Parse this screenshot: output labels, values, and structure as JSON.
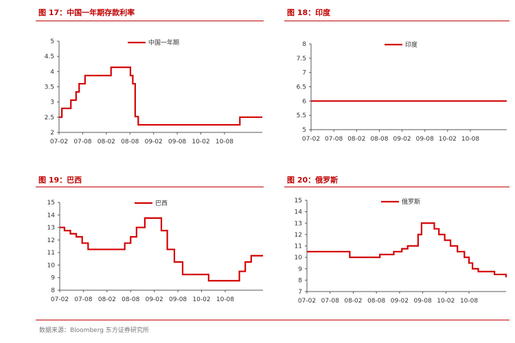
{
  "panels": [
    {
      "title": "图 17：中国一年期存款利率"
    },
    {
      "title": "图 18：印度"
    },
    {
      "title": "图 19：巴西"
    },
    {
      "title": "图 20：俄罗斯"
    }
  ],
  "footer": "数据来源：Bloomberg  东方证券研究所",
  "colors": {
    "series": "#d40000",
    "title": "#c00000",
    "axis": "#555555"
  },
  "chart_data": [
    {
      "type": "line",
      "legend": "中国一年期",
      "xticks": [
        "07-02",
        "07-08",
        "08-02",
        "08-08",
        "09-02",
        "09-08",
        "10-02",
        "10-08"
      ],
      "ylim": [
        2,
        5
      ],
      "yticks": [
        "2",
        "2.5",
        "3",
        "3.5",
        "4",
        "4.5",
        "5"
      ],
      "series": [
        {
          "name": "中国一年期",
          "step": true,
          "x": [
            0,
            0.12,
            0.3,
            0.5,
            0.62,
            0.72,
            0.85,
            1.1,
            1.6,
            2.2,
            2.75,
            2.95,
            3.02,
            3.12,
            3.22,
            3.35,
            3.5,
            3.7,
            4.4,
            5.5,
            6.6,
            7.5,
            7.65,
            8.6
          ],
          "y": [
            2.5,
            2.79,
            2.79,
            3.06,
            3.06,
            3.33,
            3.6,
            3.87,
            3.87,
            4.14,
            4.14,
            4.14,
            3.87,
            3.6,
            2.52,
            2.25,
            2.25,
            2.25,
            2.25,
            2.25,
            2.25,
            2.25,
            2.5,
            2.5
          ]
        }
      ]
    },
    {
      "type": "line",
      "legend": "印度",
      "xticks": [
        "07-02",
        "07-08",
        "08-02",
        "08-08",
        "09-02",
        "09-08",
        "10-02",
        "10-08"
      ],
      "ylim": [
        5,
        8
      ],
      "yticks": [
        "5",
        "5.5",
        "6",
        "6.5",
        "7",
        "7.5",
        "8"
      ],
      "series": [
        {
          "name": "印度",
          "step": true,
          "x": [
            0,
            8.6
          ],
          "y": [
            6,
            6
          ]
        }
      ]
    },
    {
      "type": "line",
      "legend": "巴西",
      "xticks": [
        "07-02",
        "07-08",
        "08-02",
        "08-08",
        "09-02",
        "09-08",
        "10-02",
        "10-08"
      ],
      "ylim": [
        8,
        15
      ],
      "yticks": [
        "8",
        "9",
        "10",
        "11",
        "12",
        "13",
        "14",
        "15"
      ],
      "series": [
        {
          "name": "巴西",
          "step": true,
          "x": [
            0,
            0.2,
            0.45,
            0.7,
            0.95,
            1.2,
            1.6,
            2.0,
            2.5,
            2.75,
            3.0,
            3.25,
            3.6,
            4.1,
            4.3,
            4.55,
            4.85,
            5.2,
            6.3,
            7.4,
            7.6,
            7.85,
            8.1,
            8.6
          ],
          "y": [
            13,
            12.75,
            12.5,
            12.25,
            11.75,
            11.25,
            11.25,
            11.25,
            11.25,
            11.75,
            12.25,
            13,
            13.75,
            13.75,
            12.75,
            11.25,
            10.25,
            9.25,
            8.75,
            8.75,
            9.5,
            10.25,
            10.75,
            10.75
          ]
        }
      ]
    },
    {
      "type": "line",
      "legend": "俄罗斯",
      "xticks": [
        "07-02",
        "07-08",
        "08-02",
        "08-08",
        "09-02",
        "09-08",
        "10-02",
        "10-08"
      ],
      "ylim": [
        7,
        15
      ],
      "yticks": [
        "7",
        "8",
        "9",
        "10",
        "11",
        "12",
        "13",
        "14",
        "15"
      ],
      "series": [
        {
          "name": "俄罗斯",
          "step": true,
          "x": [
            0,
            0.9,
            1.85,
            2.35,
            2.85,
            3.15,
            3.4,
            3.75,
            4.1,
            4.35,
            4.5,
            4.65,
            4.8,
            4.95,
            5.1,
            5.3,
            5.5,
            5.7,
            5.95,
            6.2,
            6.5,
            6.8,
            7.0,
            7.15,
            7.4,
            8.1,
            8.6
          ],
          "y": [
            10.5,
            10.5,
            10,
            10,
            10,
            10.25,
            10.25,
            10.5,
            10.75,
            11,
            11,
            11,
            12,
            13,
            13,
            13,
            12.5,
            12,
            11.5,
            11,
            10.5,
            10,
            9.5,
            9,
            8.75,
            8.5,
            8.25
          ]
        }
      ]
    }
  ]
}
